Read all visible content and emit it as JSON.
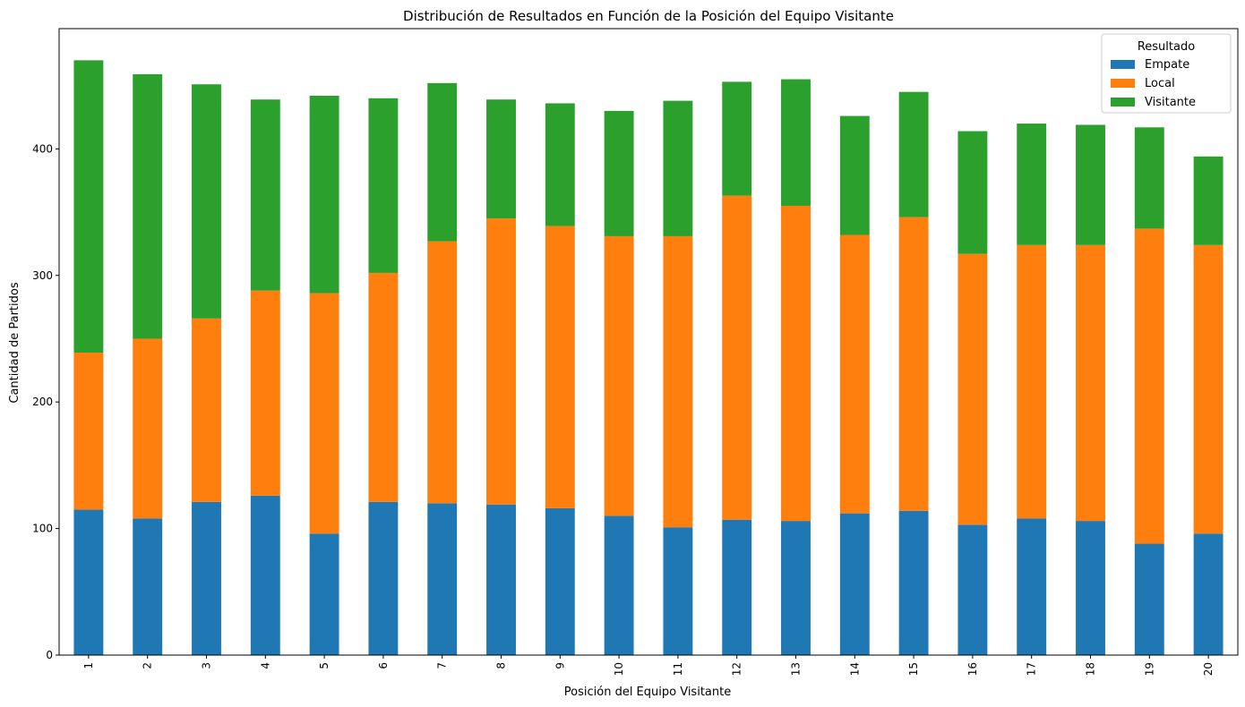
{
  "chart_data": {
    "type": "bar",
    "stacked": true,
    "title": "Distribución de Resultados en Función de la Posición del Equipo Visitante",
    "xlabel": "Posición del Equipo Visitante",
    "ylabel": "Cantidad de Partidos",
    "categories": [
      "1",
      "2",
      "3",
      "4",
      "5",
      "6",
      "7",
      "8",
      "9",
      "10",
      "11",
      "12",
      "13",
      "14",
      "15",
      "16",
      "17",
      "18",
      "19",
      "20"
    ],
    "ylim": [
      0,
      495
    ],
    "yticks": [
      0,
      100,
      200,
      300,
      400
    ],
    "series": [
      {
        "name": "Empate",
        "color": "#1f77b4",
        "values": [
          115,
          108,
          121,
          126,
          96,
          121,
          120,
          119,
          116,
          110,
          101,
          107,
          106,
          112,
          114,
          103,
          108,
          106,
          88,
          96
        ]
      },
      {
        "name": "Local",
        "color": "#ff7f0e",
        "values": [
          124,
          142,
          145,
          162,
          190,
          181,
          207,
          226,
          223,
          221,
          230,
          256,
          249,
          220,
          232,
          214,
          216,
          218,
          249,
          228
        ]
      },
      {
        "name": "Visitante",
        "color": "#2ca02c",
        "values": [
          231,
          209,
          185,
          151,
          156,
          138,
          125,
          94,
          97,
          99,
          107,
          90,
          100,
          94,
          99,
          97,
          96,
          95,
          80,
          70
        ]
      }
    ],
    "legend": {
      "title": "Resultado",
      "position": "top-right"
    },
    "grid": false
  }
}
